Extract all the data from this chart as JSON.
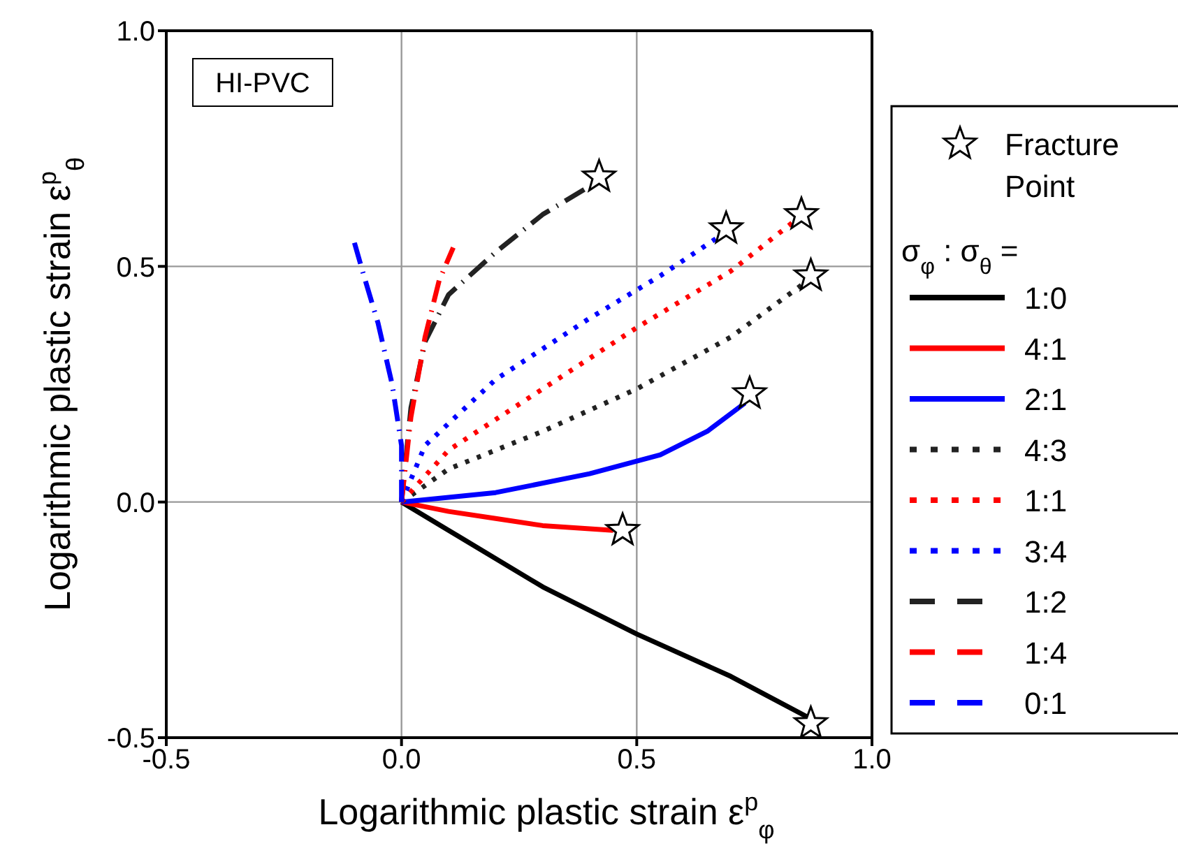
{
  "chart_data": {
    "type": "line",
    "xlabel": "Logarithmic plastic strain  ε$^{p}$$_{φ}$",
    "ylabel": "Logarithmic plastic strain  ε$^{p}$$_{θ}$",
    "legend_title": "σ$_{φ}$ : σ$_{θ}$ =",
    "annotations": [
      "HI-PVC"
    ],
    "xlim": [
      -0.5,
      1.0
    ],
    "xticks": [
      {
        "value": -0.5,
        "label": "-0.5"
      },
      {
        "value": 0,
        "label": "0.0"
      },
      {
        "value": 0.5,
        "label": "0.5"
      },
      {
        "value": 1.0,
        "label": "1.0"
      }
    ],
    "ylim": [
      -0.5,
      1.0
    ],
    "yticks": [
      {
        "value": -0.5,
        "label": "-0.5"
      },
      {
        "value": 0,
        "label": "0.0"
      },
      {
        "value": 0.5,
        "label": "0.5"
      },
      {
        "value": 1.0,
        "label": "1.0"
      }
    ],
    "grid": true,
    "legend": "right",
    "series": [
      {
        "type": "scatter",
        "name": "Fracture Point",
        "marker": "star",
        "color": "#000000",
        "x": [
          0.87,
          0.47,
          0.74,
          0.87,
          0.85,
          0.69,
          0.42
        ],
        "values": [
          -0.47,
          -0.06,
          0.23,
          0.48,
          0.61,
          0.58,
          0.69
        ]
      },
      {
        "name": "1:0",
        "color": "#000000",
        "line_style": "solid",
        "x": [
          0,
          0.1,
          0.3,
          0.5,
          0.7,
          0.87
        ],
        "values": [
          0,
          -0.06,
          -0.18,
          -0.28,
          -0.37,
          -0.46
        ]
      },
      {
        "name": "4:1",
        "color": "#ff0000",
        "line_style": "solid",
        "x": [
          0,
          0.1,
          0.2,
          0.3,
          0.45
        ],
        "values": [
          0,
          -0.02,
          -0.035,
          -0.05,
          -0.06
        ]
      },
      {
        "name": "2:1",
        "color": "#0000ff",
        "line_style": "solid",
        "x": [
          0,
          0.2,
          0.4,
          0.55,
          0.65,
          0.73
        ],
        "values": [
          0,
          0.02,
          0.06,
          0.1,
          0.15,
          0.21
        ]
      },
      {
        "name": "4:3",
        "color": "#222222",
        "line_style": "dotted",
        "x": [
          0,
          0.1,
          0.3,
          0.5,
          0.7,
          0.85
        ],
        "values": [
          0,
          0.07,
          0.15,
          0.24,
          0.35,
          0.46
        ]
      },
      {
        "name": "1:1",
        "color": "#ff0000",
        "line_style": "dotted",
        "x": [
          0,
          0.1,
          0.3,
          0.5,
          0.7,
          0.84
        ],
        "values": [
          0,
          0.11,
          0.24,
          0.37,
          0.49,
          0.6
        ]
      },
      {
        "name": "3:4",
        "color": "#0000ff",
        "line_style": "dotted",
        "x": [
          0,
          0.05,
          0.2,
          0.4,
          0.55,
          0.67
        ],
        "values": [
          0,
          0.12,
          0.26,
          0.39,
          0.48,
          0.56
        ]
      },
      {
        "name": "1:2",
        "color": "#222222",
        "line_style": "dashed",
        "x": [
          0,
          0.02,
          0.05,
          0.1,
          0.2,
          0.3,
          0.4
        ],
        "values": [
          0,
          0.2,
          0.34,
          0.44,
          0.53,
          0.61,
          0.67
        ]
      },
      {
        "name": "1:4",
        "color": "#ff0000",
        "line_style": "dashed",
        "x": [
          0,
          0.02,
          0.05,
          0.08,
          0.11
        ],
        "values": [
          0,
          0.18,
          0.35,
          0.47,
          0.54
        ]
      },
      {
        "name": "0:1",
        "color": "#0000ff",
        "line_style": "dashed",
        "x": [
          0,
          0,
          -0.02,
          -0.05,
          -0.08,
          -0.1
        ],
        "values": [
          0,
          0.12,
          0.25,
          0.38,
          0.48,
          0.55
        ]
      }
    ]
  }
}
